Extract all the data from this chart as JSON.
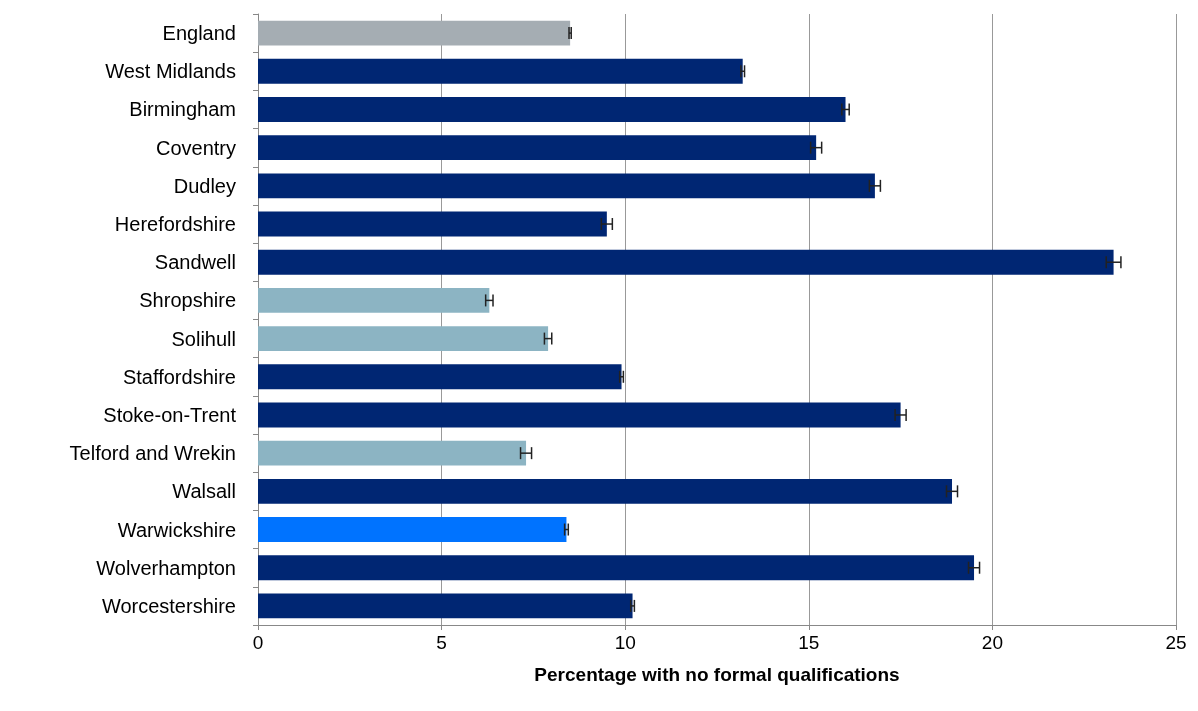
{
  "chart_data": {
    "type": "bar",
    "orientation": "horizontal",
    "xlabel": "Percentage with no formal qualifications",
    "categories": [
      "England",
      "West Midlands",
      "Birmingham",
      "Coventry",
      "Dudley",
      "Herefordshire",
      "Sandwell",
      "Shropshire",
      "Solihull",
      "Staffordshire",
      "Stoke-on-Trent",
      "Telford and Wrekin",
      "Walsall",
      "Warwickshire",
      "Wolverhampton",
      "Worcestershire"
    ],
    "values": [
      8.5,
      13.2,
      16.0,
      15.2,
      16.8,
      9.5,
      23.3,
      6.3,
      7.9,
      9.9,
      17.5,
      7.3,
      18.9,
      8.4,
      19.5,
      10.2
    ],
    "errors": [
      0.03,
      0.05,
      0.1,
      0.15,
      0.15,
      0.15,
      0.2,
      0.1,
      0.1,
      0.05,
      0.15,
      0.15,
      0.15,
      0.05,
      0.15,
      0.05
    ],
    "colors": [
      "#a5adb3",
      "#002673",
      "#002673",
      "#002673",
      "#002673",
      "#002673",
      "#002673",
      "#8cb4c3",
      "#8cb4c3",
      "#002673",
      "#002673",
      "#8cb4c3",
      "#002673",
      "#0073ff",
      "#002673",
      "#002673"
    ],
    "xlim": [
      0,
      25
    ],
    "xticks": [
      0,
      5,
      10,
      15,
      20,
      25
    ],
    "grid": "x"
  }
}
